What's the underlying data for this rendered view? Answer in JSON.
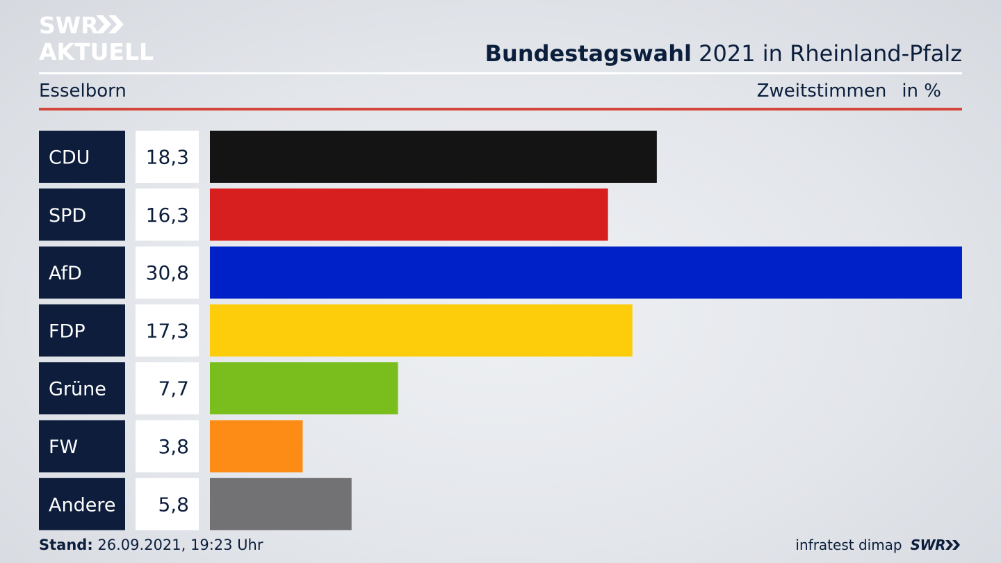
{
  "logo": {
    "line1": "SWR",
    "line2": "AKTUELL"
  },
  "header": {
    "title_bold": "Bundestagswahl",
    "title_rest": " 2021 in Rheinland-Pfalz",
    "location": "Esselborn",
    "measure": "Zweitstimmen",
    "unit": "in %"
  },
  "chart_data": {
    "type": "bar",
    "orientation": "horizontal",
    "categories": [
      "CDU",
      "SPD",
      "AfD",
      "FDP",
      "Grüne",
      "FW",
      "Andere"
    ],
    "values": [
      18.3,
      16.3,
      30.8,
      17.3,
      7.7,
      3.8,
      5.8
    ],
    "value_labels": [
      "18,3",
      "16,3",
      "30,8",
      "17,3",
      "7,7",
      "3,8",
      "5,8"
    ],
    "colors": [
      "#141414",
      "#d81f1f",
      "#0021c8",
      "#fdcc0a",
      "#7abe1e",
      "#fd8c16",
      "#727274"
    ],
    "xlim": [
      0,
      30.8
    ],
    "grid": false,
    "legend": "none"
  },
  "footer": {
    "stand_label": "Stand:",
    "stand_value": " 26.09.2021, 19:23 Uhr",
    "source": "infratest dimap",
    "brand": "SWR"
  },
  "theme": {
    "navy": "#0b1e3c",
    "accent_red": "#d3473b"
  }
}
